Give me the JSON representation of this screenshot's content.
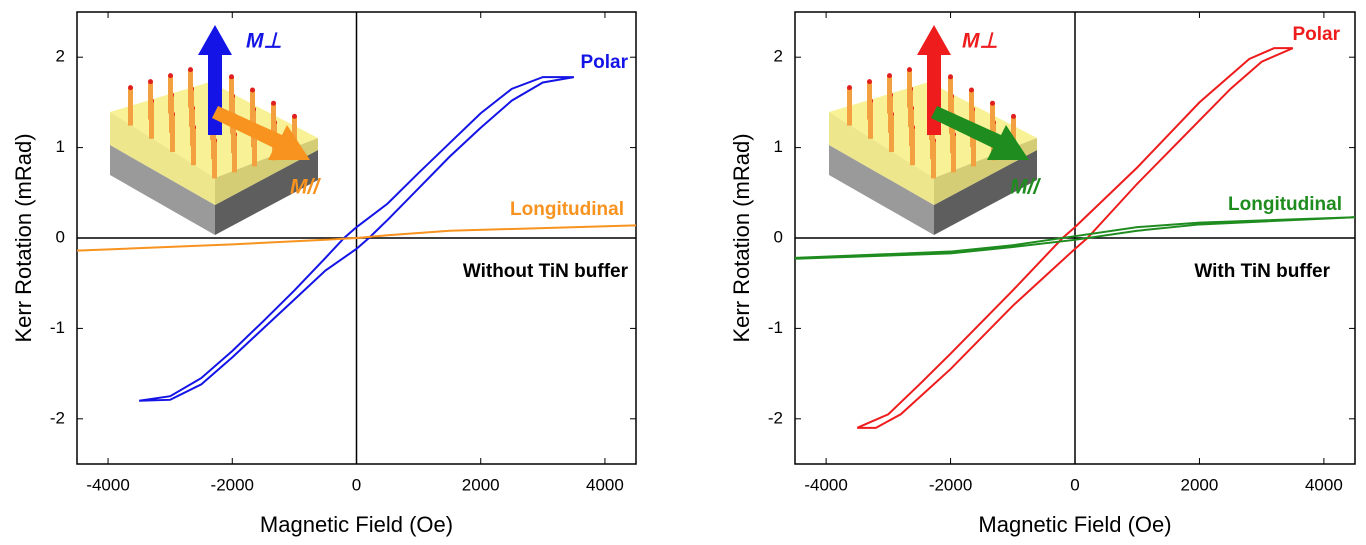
{
  "chart_data": [
    {
      "type": "line",
      "xlabel": "Magnetic Field (Oe)",
      "ylabel": "Kerr Rotation (mRad)",
      "xlim": [
        -4500,
        4500
      ],
      "ylim": [
        -2.5,
        2.5
      ],
      "xticks": [
        -4000,
        -2000,
        0,
        2000,
        4000
      ],
      "yticks": [
        -2,
        -1,
        0,
        1,
        2
      ],
      "annotations": [
        "Without TiN buffer",
        "M⊥",
        "M//"
      ],
      "series": [
        {
          "name": "Polar",
          "color": "#1414e6",
          "x": [
            -3500,
            -3000,
            -2500,
            -2000,
            -1500,
            -1000,
            -500,
            0,
            200,
            500,
            1000,
            1500,
            2000,
            2500,
            3000,
            3500,
            3000,
            2500,
            2000,
            1500,
            1000,
            500,
            0,
            -200,
            -500,
            -1000,
            -1500,
            -2000,
            -2500,
            -3000,
            -3500
          ],
          "values": [
            -1.8,
            -1.79,
            -1.62,
            -1.32,
            -1.0,
            -0.68,
            -0.36,
            -0.12,
            0,
            0.2,
            0.55,
            0.9,
            1.22,
            1.52,
            1.72,
            1.78,
            1.78,
            1.65,
            1.38,
            1.05,
            0.72,
            0.38,
            0.12,
            0,
            -0.22,
            -0.58,
            -0.92,
            -1.25,
            -1.55,
            -1.75,
            -1.8
          ]
        },
        {
          "name": "Longitudinal",
          "color": "#f7931e",
          "x": [
            -4500,
            -2000,
            -500,
            0,
            500,
            1500,
            4500
          ],
          "values": [
            -0.14,
            -0.07,
            -0.02,
            0,
            0.03,
            0.08,
            0.14
          ]
        }
      ]
    },
    {
      "type": "line",
      "xlabel": "Magnetic Field (Oe)",
      "ylabel": "Kerr Rotation (mRad)",
      "xlim": [
        -4500,
        4500
      ],
      "ylim": [
        -2.5,
        2.5
      ],
      "xticks": [
        -4000,
        -2000,
        0,
        2000,
        4000
      ],
      "yticks": [
        -2,
        -1,
        0,
        1,
        2
      ],
      "annotations": [
        "With TiN buffer",
        "M⊥",
        "M//"
      ],
      "series": [
        {
          "name": "Polar",
          "color": "#ee1c1c",
          "x": [
            -3500,
            -3200,
            -2800,
            -2000,
            -1000,
            0,
            200,
            1000,
            2000,
            2500,
            3000,
            3500,
            3200,
            2800,
            2000,
            1000,
            0,
            -200,
            -1000,
            -2000,
            -2500,
            -3000,
            -3500
          ],
          "values": [
            -2.1,
            -2.1,
            -1.95,
            -1.45,
            -0.75,
            -0.12,
            0,
            0.6,
            1.3,
            1.65,
            1.95,
            2.1,
            2.1,
            1.98,
            1.5,
            0.78,
            0.12,
            0,
            -0.58,
            -1.28,
            -1.62,
            -1.95,
            -2.1
          ]
        },
        {
          "name": "Longitudinal",
          "color": "#1f8c1f",
          "x": [
            -4500,
            -2000,
            -1000,
            0,
            1000,
            2000,
            4500,
            2000,
            1000,
            0,
            -1000,
            -2000,
            -4500
          ],
          "values": [
            -0.22,
            -0.15,
            -0.08,
            0.02,
            0.12,
            0.17,
            0.23,
            0.15,
            0.08,
            -0.02,
            -0.1,
            -0.17,
            -0.23
          ]
        }
      ]
    }
  ]
}
